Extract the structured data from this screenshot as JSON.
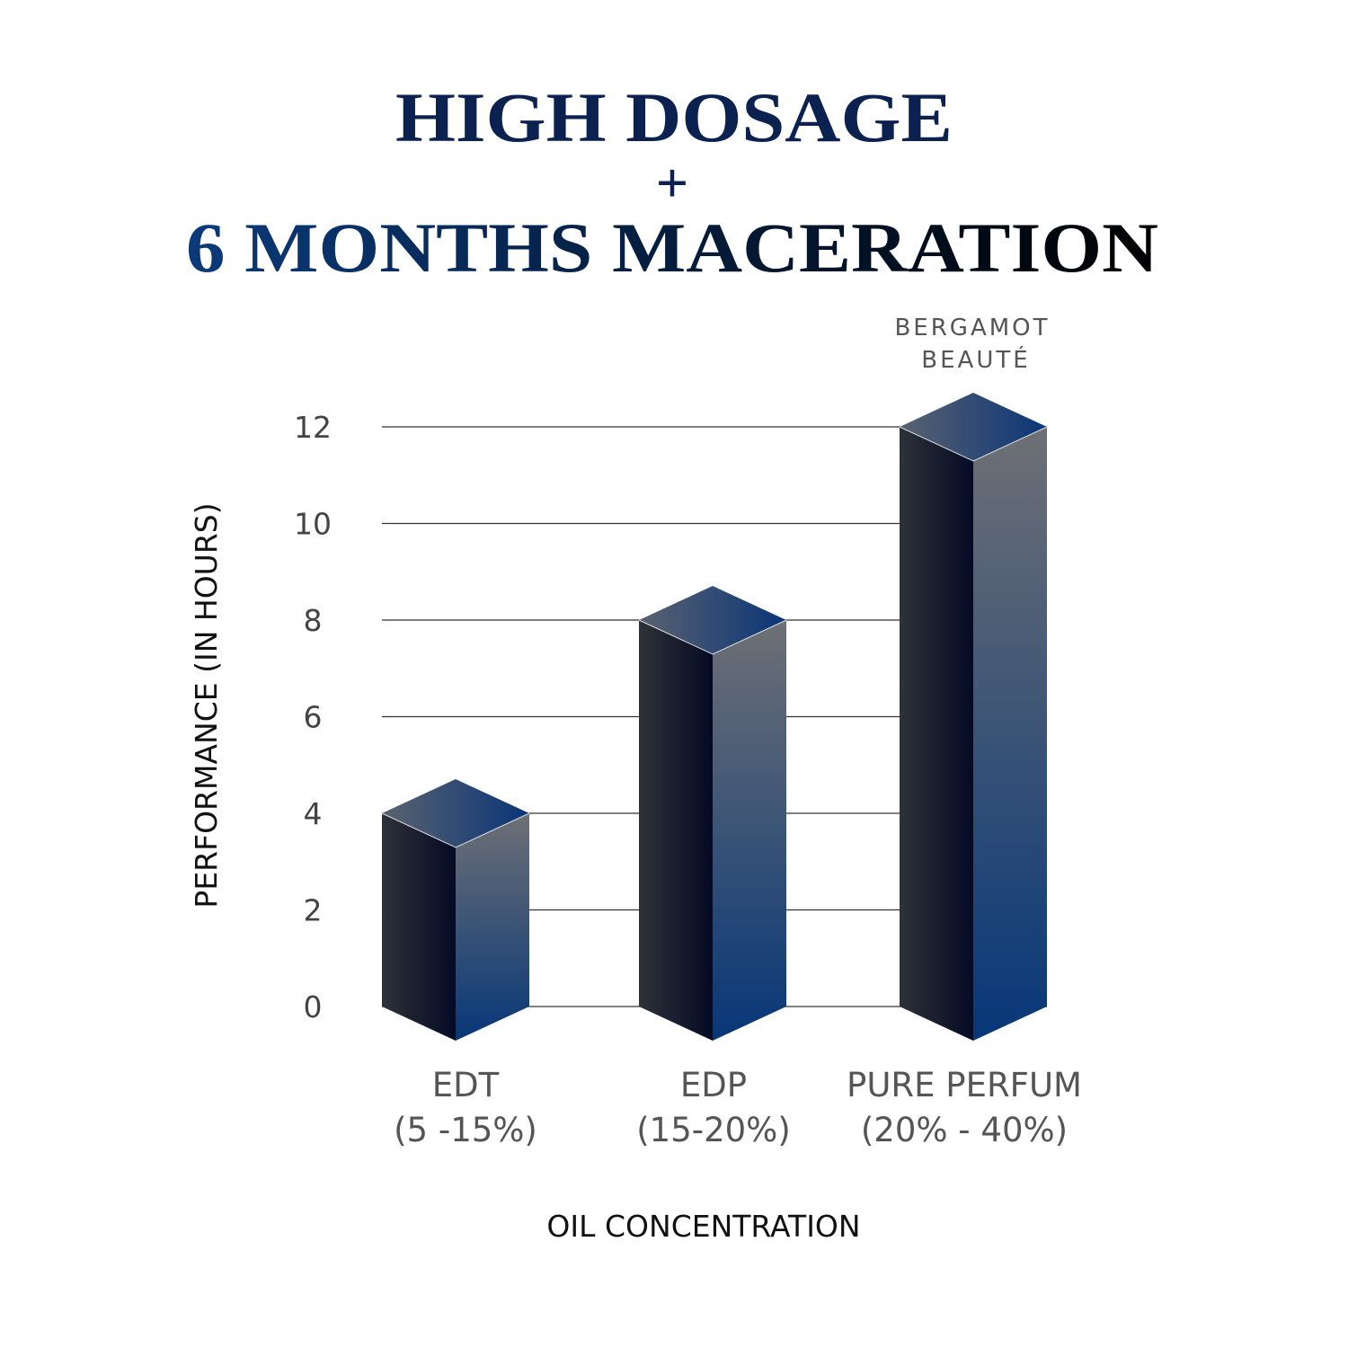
{
  "chart_data": {
    "type": "bar",
    "title": [
      "HIGH DOSAGE",
      "+",
      "6 MONTHS MACERATION"
    ],
    "xlabel": "OIL CONCENTRATION",
    "ylabel": "PERFORMANCE (IN HOURS)",
    "categories": [
      [
        "EDT",
        "(5 -15%)"
      ],
      [
        "EDP",
        "(15-20%)"
      ],
      [
        "PURE PERFUM",
        "(20% - 40%)"
      ]
    ],
    "values": [
      4,
      8,
      12
    ],
    "ylim": [
      0,
      12
    ],
    "yticks": [
      "0",
      "2",
      "4",
      "6",
      "8",
      "10",
      "12"
    ],
    "grid": true,
    "annotation": [
      "BERGAMOT",
      "BEAUTÉ"
    ],
    "colors": {
      "title_navy": "#0b2250",
      "title_blue": "#0a3a7a",
      "bar_dark": "#0a1230",
      "bar_blue": "#0a3a7a",
      "bar_grey": "#6e7075"
    }
  }
}
